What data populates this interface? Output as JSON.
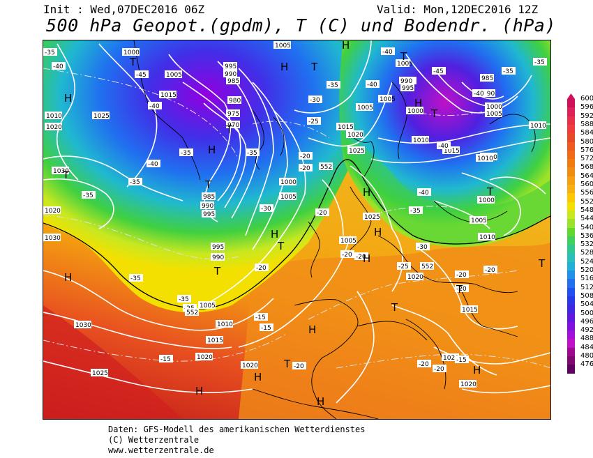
{
  "header": {
    "init": "Init : Wed,07DEC2016 06Z",
    "valid": "Valid: Mon,12DEC2016 12Z",
    "title": "500 hPa Geopot.(gpdm), T (C) und Bodendr. (hPa)"
  },
  "legend": {
    "values": [
      "600",
      "596",
      "592",
      "588",
      "584",
      "580",
      "576",
      "572",
      "568",
      "564",
      "560",
      "556",
      "552",
      "548",
      "544",
      "540",
      "536",
      "532",
      "528",
      "524",
      "520",
      "516",
      "512",
      "508",
      "504",
      "500",
      "496",
      "492",
      "488",
      "484",
      "480",
      "476"
    ],
    "colors": [
      "#d0105a",
      "#e0205a",
      "#e8304a",
      "#f03c3c",
      "#e84a28",
      "#f05a20",
      "#f06a18",
      "#f07c10",
      "#f08c10",
      "#f4a010",
      "#f8b010",
      "#fcc800",
      "#f4e000",
      "#c8e820",
      "#9ce228",
      "#60d830",
      "#40d060",
      "#30c890",
      "#28c0b8",
      "#20b0d8",
      "#2090e8",
      "#2070f0",
      "#2050f0",
      "#2838e8",
      "#4028e0",
      "#6018e0",
      "#8010e0",
      "#a010d8",
      "#c010c8",
      "#a00890",
      "#800870",
      "#600060"
    ]
  },
  "map_labels": {
    "pressure": [
      "1000",
      "1005",
      "995",
      "990",
      "985",
      "980",
      "975",
      "970",
      "1015",
      "1010",
      "1020",
      "1025",
      "1030",
      "1000",
      "985",
      "990",
      "995",
      "1005",
      "1000",
      "1010",
      "1015",
      "1020",
      "1025",
      "1030",
      "1005",
      "1010",
      "1015",
      "1020",
      "1025",
      "1000",
      "995",
      "990",
      "1005",
      "1015",
      "1020",
      "1025",
      "1010",
      "1015",
      "1020",
      "1020",
      "1015",
      "1010",
      "1005",
      "1000",
      "985",
      "990",
      "995",
      "1000",
      "1005",
      "1010",
      "1015",
      "1010",
      "1005",
      "1000",
      "1020",
      "1015",
      "1010",
      "1005",
      "1020"
    ],
    "temps": [
      "-35",
      "-40",
      "-45",
      "-40",
      "-45",
      "-35",
      "-30",
      "-35",
      "-30",
      "-35",
      "-40",
      "-35",
      "-30",
      "-25",
      "-20",
      "-20",
      "-30",
      "-35",
      "-40",
      "-45",
      "-40",
      "-35",
      "-30",
      "-25",
      "-20",
      "-35",
      "-30",
      "-25",
      "-20",
      "-15",
      "-15",
      "-20",
      "-20",
      "-20",
      "-25",
      "-20",
      "-20",
      "-20",
      "-15",
      "-20",
      "-35",
      "-30",
      "-40",
      "-20",
      "-25",
      "-20",
      "-15"
    ],
    "geopot": [
      "552",
      "552",
      "552"
    ],
    "high": "H",
    "low": "T"
  },
  "footer": {
    "line1": "Daten: GFS-Modell des amerikanischen Wetterdienstes",
    "line2": "(C) Wetterzentrale",
    "line3": "www.wetterzentrale.de"
  }
}
